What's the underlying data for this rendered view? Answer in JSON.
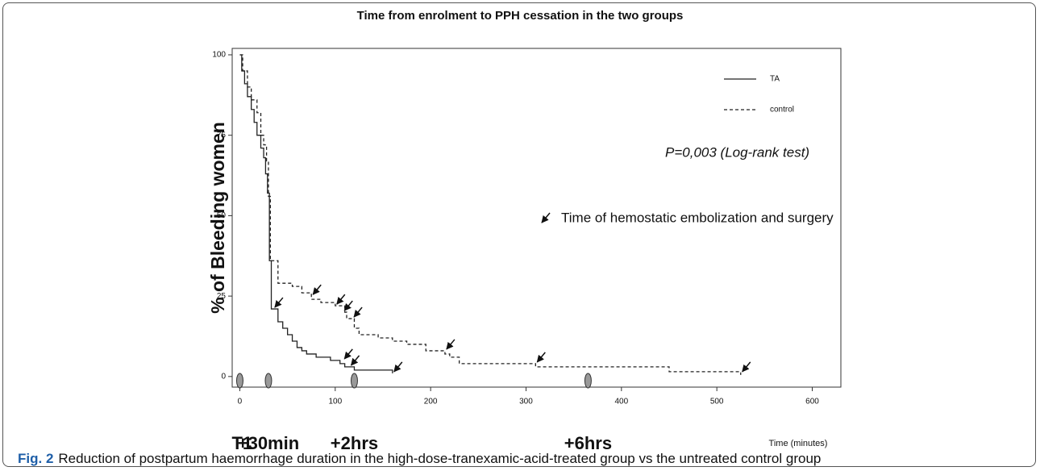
{
  "chart_data": {
    "type": "km",
    "title": "Time from enrolment to PPH cessation in the two groups",
    "ylabel": "% of Bleeding women",
    "xlabel": "Time (minutes)",
    "xlim": [
      -8,
      630
    ],
    "ylim": [
      -3.3,
      102
    ],
    "xticks": [
      0,
      100,
      200,
      300,
      400,
      500,
      600
    ],
    "yticks": [
      0,
      25,
      50,
      75,
      100
    ],
    "legend": "top-right",
    "annotation": "P=0,003 (Log-rank test)",
    "marker_note": "Time of hemostatic embolization and surgery",
    "series": [
      {
        "name": "TA",
        "color": "#222222",
        "dashed": false,
        "x": [
          0,
          2,
          5,
          8,
          12,
          15,
          18,
          22,
          25,
          27,
          29,
          31,
          33,
          40,
          45,
          50,
          55,
          60,
          65,
          70,
          80,
          95,
          105,
          110,
          120,
          160
        ],
        "values": [
          100,
          95,
          91,
          87,
          83,
          79,
          75,
          71,
          68,
          63,
          57,
          36,
          21,
          17,
          15,
          13,
          11,
          9,
          8,
          7,
          6,
          5,
          4,
          3,
          2,
          1
        ]
      },
      {
        "name": "control",
        "color": "#222222",
        "dashed": true,
        "x": [
          0,
          3,
          8,
          12,
          18,
          22,
          25,
          28,
          30,
          32,
          40,
          55,
          65,
          75,
          85,
          100,
          110,
          112,
          120,
          125,
          145,
          160,
          175,
          195,
          215,
          220,
          230,
          310,
          450,
          525
        ],
        "values": [
          100,
          95,
          90,
          86,
          82,
          75,
          72,
          67,
          56,
          36,
          29,
          28,
          26,
          24,
          23,
          22,
          20,
          18,
          15,
          13,
          12,
          11,
          10,
          8,
          7,
          6,
          4,
          3,
          1.5,
          0.5
        ]
      }
    ],
    "markers": {
      "x": [
        35,
        108,
        115,
        160,
        75,
        100,
        108,
        118,
        215,
        310,
        525
      ],
      "y": [
        21,
        5,
        3,
        1,
        25,
        22,
        20,
        18,
        8,
        4,
        1
      ]
    },
    "timepoints": [
      {
        "value": 0,
        "label": "T1"
      },
      {
        "value": 30,
        "label": "+30min"
      },
      {
        "value": 120,
        "label": "+2hrs"
      },
      {
        "value": 365,
        "label": "+6hrs"
      }
    ]
  },
  "caption": {
    "label": "Fig. 2",
    "text": "Reduction of postpartum haemorrhage duration in the high-dose-tranexamic-acid-treated group vs the untreated control group"
  }
}
